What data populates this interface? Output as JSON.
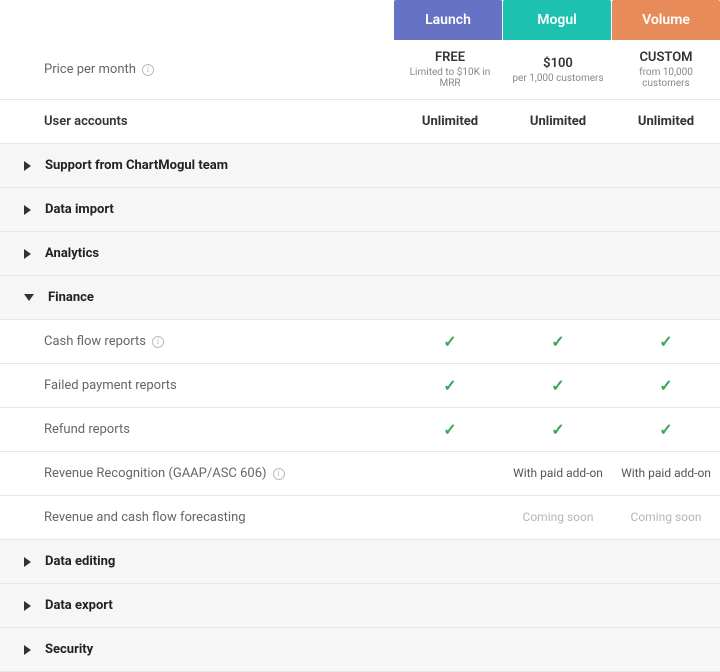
{
  "plans": [
    {
      "key": "launch",
      "name": "Launch",
      "color": "#6672c3"
    },
    {
      "key": "mogul",
      "name": "Mogul",
      "color": "#1dc1b0"
    },
    {
      "key": "volume",
      "name": "Volume",
      "color": "#e78c58"
    }
  ],
  "price_row": {
    "label": "Price per month",
    "info": true,
    "cells": [
      {
        "value": "FREE",
        "sub": "Limited to $10K in MRR"
      },
      {
        "value": "$100",
        "sub": "per 1,000 customers"
      },
      {
        "value": "CUSTOM",
        "sub": "from 10,000 customers"
      }
    ]
  },
  "rows": [
    {
      "type": "child",
      "label": "User accounts",
      "cells": [
        "Unlimited",
        "Unlimited",
        "Unlimited"
      ],
      "bold": true
    },
    {
      "type": "section",
      "label": "Support from ChartMogul team",
      "expanded": false
    },
    {
      "type": "section",
      "label": "Data import",
      "expanded": false
    },
    {
      "type": "section",
      "label": "Analytics",
      "expanded": false
    },
    {
      "type": "section",
      "label": "Finance",
      "expanded": true
    },
    {
      "type": "child",
      "label": "Cash flow reports",
      "info": true,
      "cells": [
        "check",
        "check",
        "check"
      ]
    },
    {
      "type": "child",
      "label": "Failed payment reports",
      "cells": [
        "check",
        "check",
        "check"
      ]
    },
    {
      "type": "child",
      "label": "Refund reports",
      "cells": [
        "check",
        "check",
        "check"
      ]
    },
    {
      "type": "child",
      "label": "Revenue Recognition (GAAP/ASC 606)",
      "info": true,
      "cells": [
        "",
        "addon:With paid add-on",
        "addon:With paid add-on"
      ]
    },
    {
      "type": "child",
      "label": "Revenue and cash flow forecasting",
      "cells": [
        "",
        "coming:Coming soon",
        "coming:Coming soon"
      ]
    },
    {
      "type": "section",
      "label": "Data editing",
      "expanded": false
    },
    {
      "type": "section",
      "label": "Data export",
      "expanded": false
    },
    {
      "type": "section",
      "label": "Security",
      "expanded": false
    }
  ],
  "colors": {
    "row_border": "#e8e8e8",
    "section_bg": "#f6f6f6",
    "check": "#3ba55c",
    "coming": "#b5b5b5"
  }
}
